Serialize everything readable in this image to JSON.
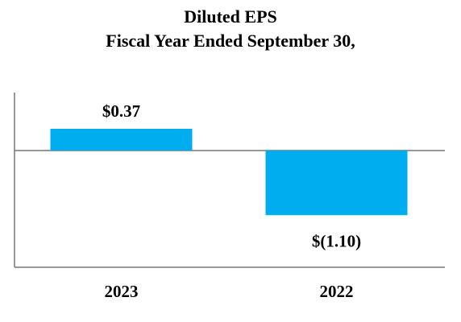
{
  "chart_data": {
    "type": "bar",
    "title": "Diluted EPS",
    "subtitle": "Fiscal Year Ended September 30,",
    "categories": [
      "2023",
      "2022"
    ],
    "values": [
      0.37,
      -1.1
    ],
    "data_labels": [
      "$0.37",
      "$(1.10)"
    ],
    "bar_color": "#00aeef",
    "axis_color": "#777777",
    "ylim": [
      -1.9,
      0.5
    ],
    "grid": false,
    "legend": "none"
  }
}
